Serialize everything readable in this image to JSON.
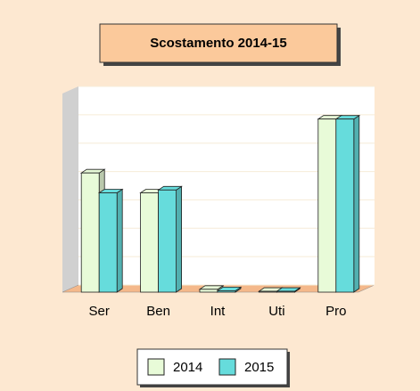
{
  "chart_data": {
    "type": "bar3d",
    "title": "Scostamento 2014-15",
    "categories": [
      "Ser",
      "Ben",
      "Int",
      "Uti",
      "Pro"
    ],
    "series": [
      {
        "name": "2014",
        "color": "#e8fbd8",
        "values": [
          4.2,
          3.5,
          0.1,
          0.03,
          6.1
        ]
      },
      {
        "name": "2015",
        "color": "#66dcdc",
        "values": [
          3.5,
          3.6,
          0.05,
          0.03,
          6.1
        ]
      }
    ],
    "ylim": [
      0,
      7
    ],
    "yticks": [
      0,
      1,
      2,
      3,
      4,
      5,
      6,
      7
    ],
    "grid": true
  }
}
